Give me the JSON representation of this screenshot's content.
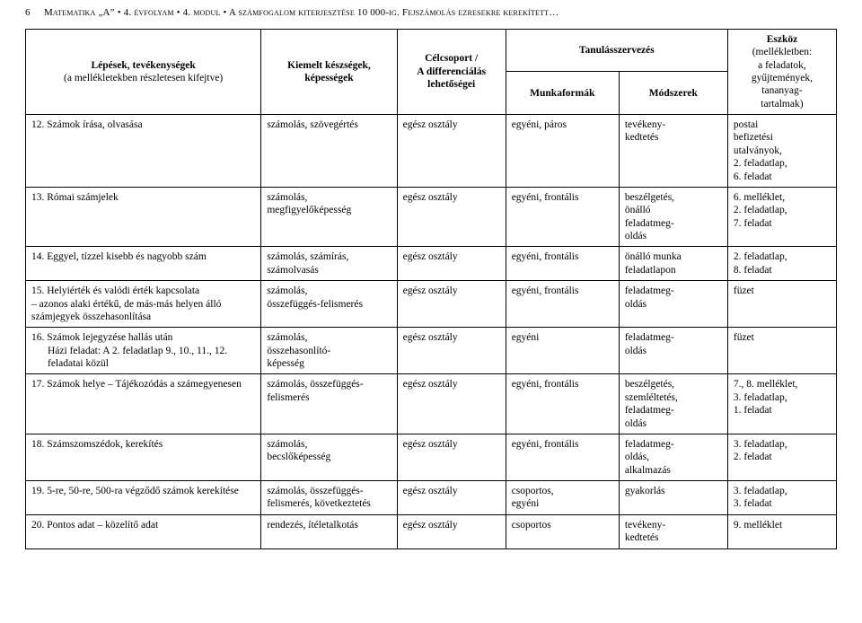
{
  "header": {
    "page_number": "6",
    "running_title": "Matematika „A” • 4. évfolyam • 4. modul • A számfogalom kiterjesztése 10 000-ig. Fejszámolás ezresekre kerekített…"
  },
  "columns": {
    "c1_line1": "Lépések, tevékenységek",
    "c1_line2": "(a mellékletekben részletesen kifejtve)",
    "c2_line1": "Kiemelt készségek,",
    "c2_line2": "képességek",
    "c3_line1": "Célcsoport /",
    "c3_line2": "A differenciálás",
    "c3_line3": "lehetőségei",
    "c45_top": "Tanulásszervezés",
    "c4_sub": "Munkaformák",
    "c5_sub": "Módszerek",
    "c6_line1": "Eszköz",
    "c6_line2": "(mellékletben:",
    "c6_line3": "a feladatok,",
    "c6_line4": "gyűjtemények,",
    "c6_line5": "tananyag-",
    "c6_line6": "tartalmak)"
  },
  "rows": [
    {
      "title": "12. Számok írása, olvasása",
      "skills": "számolás, szövegértés",
      "group": "egész osztály",
      "forms": "egyéni, páros",
      "methods": "tevékeny-\nkedtetés",
      "tools": "postai\nbefizetési\nutalványok,\n2. feladatlap,\n6. feladat"
    },
    {
      "title": "13. Római számjelek",
      "skills": "számolás,\nmegfigyelőképesség",
      "group": "egész osztály",
      "forms": "egyéni, frontális",
      "methods": "beszélgetés,\nönálló\nfeladatmeg-\noldás",
      "tools": "6. melléklet,\n2. feladatlap,\n7. feladat"
    },
    {
      "title": "14. Eggyel, tízzel kisebb és nagyobb szám",
      "skills": "számolás, számírás,\nszámolvasás",
      "group": "egész osztály",
      "forms": "egyéni, frontális",
      "methods": "önálló munka\nfeladatlapon",
      "tools": "2. feladatlap,\n8. feladat"
    },
    {
      "title": "15. Helyiérték és valódi érték kapcsolata\n– azonos alaki értékű, de más-más helyen álló\nszámjegyek összehasonlítása",
      "skills": "számolás,\nösszefüggés-felismerés",
      "group": "egész osztály",
      "forms": "egyéni, frontális",
      "methods": "feladatmeg-\noldás",
      "tools": "füzet"
    },
    {
      "title": "16. Számok lejegyzése hallás után\n    Házi feladat: A 2. feladatlap 9., 10., 11., 12.\n    feladatai közül",
      "skills": "számolás,\nösszehasonlító-\nképesség",
      "group": "egész osztály",
      "forms": "egyéni",
      "methods": "feladatmeg-\noldás",
      "tools": "füzet",
      "indent_sub": true,
      "title_main": "16. Számok lejegyzése hallás után",
      "title_sub1": "Házi feladat: A 2. feladatlap 9., 10., 11., 12.",
      "title_sub2": "feladatai közül"
    },
    {
      "title": "17. Számok helye – Tájékozódás a számegyenesen",
      "skills": "számolás, összefüggés-\nfelismerés",
      "group": "egész osztály",
      "forms": "egyéni, frontális",
      "methods": "beszélgetés,\nszemléltetés,\nfeladatmeg-\noldás",
      "tools": "7., 8. melléklet,\n3. feladatlap,\n1. feladat"
    },
    {
      "title": "18. Számszomszédok, kerekítés",
      "skills": "számolás,\nbecslőképesség",
      "group": "egész osztály",
      "forms": "egyéni, frontális",
      "methods": "feladatmeg-\noldás,\nalkalmazás",
      "tools": "3. feladatlap,\n2. feladat"
    },
    {
      "title": "19. 5-re, 50-re, 500-ra végződő számok kerekítése",
      "skills": "számolás, összefüggés-\nfelismerés, következtetés",
      "group": "egész osztály",
      "forms": "csoportos,\negyéni",
      "methods": "gyakorlás",
      "tools": "3. feladatlap,\n3. feladat"
    },
    {
      "title": "20. Pontos adat – közelítő adat",
      "skills": "rendezés, ítéletalkotás",
      "group": "egész osztály",
      "forms": "csoportos",
      "methods": "tevékeny-\nkedtetés",
      "tools": "9. melléklet"
    }
  ]
}
